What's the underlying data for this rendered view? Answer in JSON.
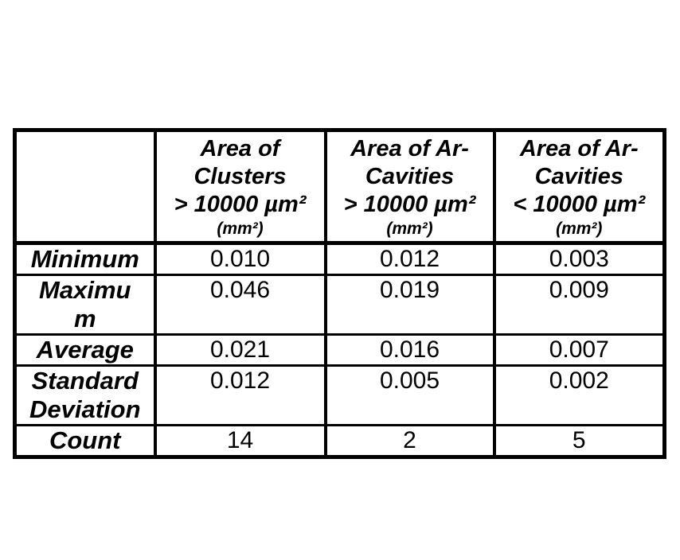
{
  "page": {
    "background_color": "#ffffff",
    "border_color": "#000000",
    "text_color": "#000000"
  },
  "table": {
    "columns": [
      {
        "title": "",
        "unit": ""
      },
      {
        "title": "Area of\nClusters\n> 10000 µm²",
        "unit": "(mm²)"
      },
      {
        "title": "Area of Ar-\nCavities\n> 10000 µm²",
        "unit": "(mm²)"
      },
      {
        "title": "Area of Ar-\nCavities\n< 10000 µm²",
        "unit": "(mm²)"
      }
    ],
    "rows": [
      {
        "label": "Minimum",
        "values": [
          "0.010",
          "0.012",
          "0.003"
        ]
      },
      {
        "label": "Maximu\nm",
        "values": [
          "0.046",
          "0.019",
          "0.009"
        ]
      },
      {
        "label": "Average",
        "values": [
          "0.021",
          "0.016",
          "0.007"
        ]
      },
      {
        "label": "Standard\nDeviation",
        "values": [
          "0.012",
          "0.005",
          "0.002"
        ]
      },
      {
        "label": "Count",
        "values": [
          "14",
          "2",
          "5"
        ]
      }
    ]
  },
  "chart_data": {
    "type": "table",
    "title": "",
    "columns": [
      "",
      "Area of Clusters > 10000 µm² (mm²)",
      "Area of Ar-Cavities > 10000 µm² (mm²)",
      "Area of Ar-Cavities < 10000 µm² (mm²)"
    ],
    "rows": [
      {
        "statistic": "Minimum",
        "values": [
          0.01,
          0.012,
          0.003
        ]
      },
      {
        "statistic": "Maximum",
        "values": [
          0.046,
          0.019,
          0.009
        ]
      },
      {
        "statistic": "Average",
        "values": [
          0.021,
          0.016,
          0.007
        ]
      },
      {
        "statistic": "Standard Deviation",
        "values": [
          0.012,
          0.005,
          0.002
        ]
      },
      {
        "statistic": "Count",
        "values": [
          14,
          2,
          5
        ]
      }
    ]
  }
}
